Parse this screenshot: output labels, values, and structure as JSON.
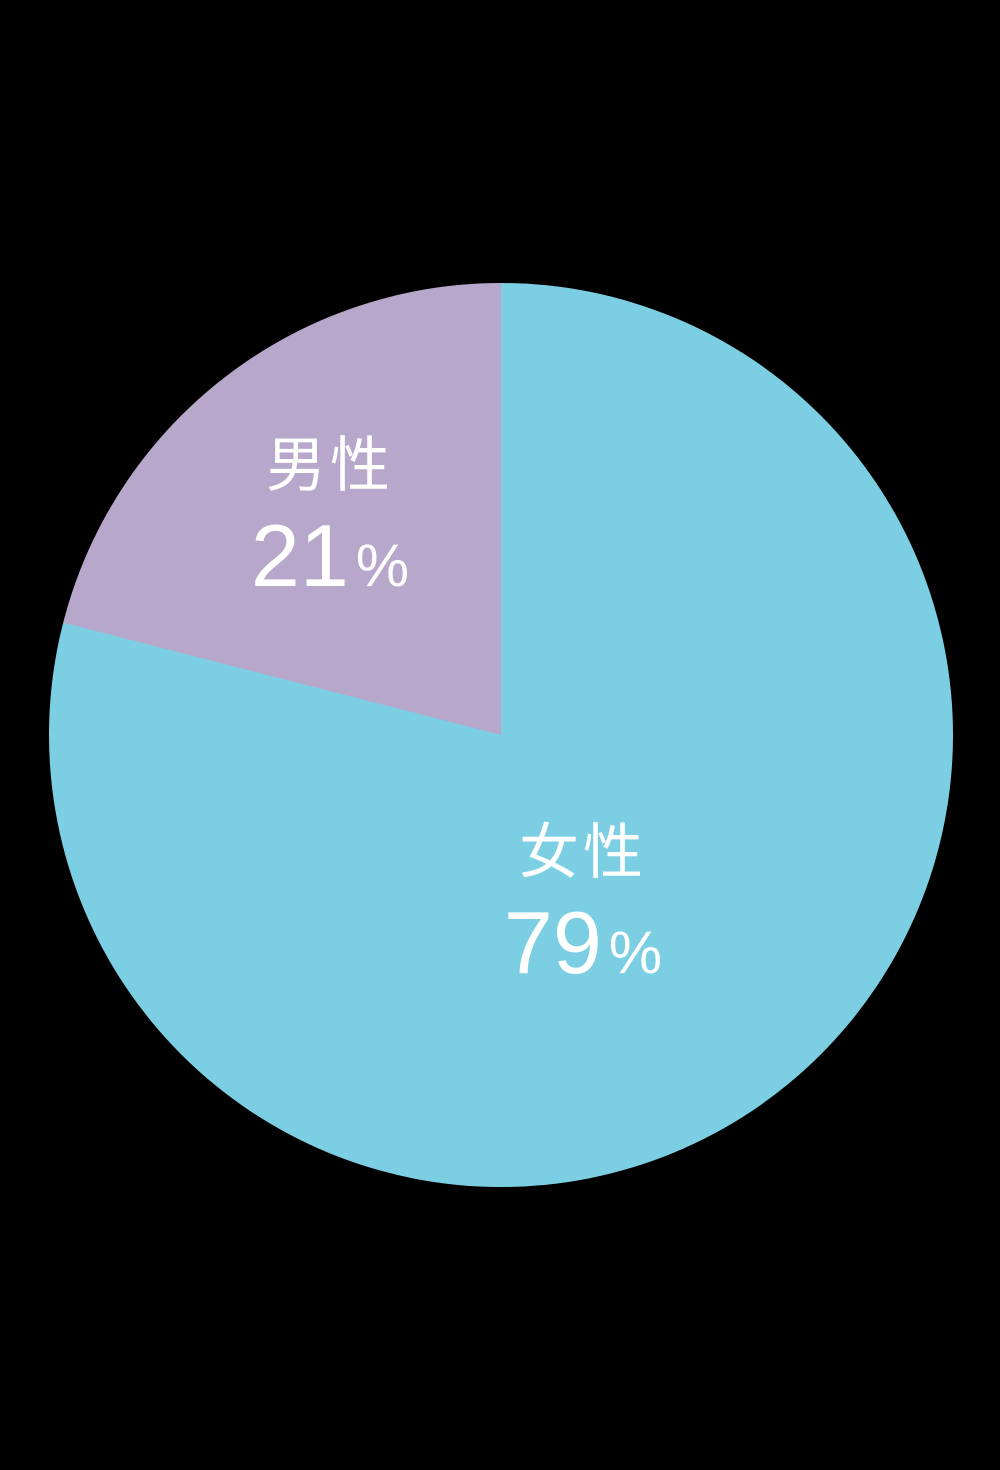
{
  "chart_data": {
    "type": "pie",
    "title": "",
    "categories": [
      "女性",
      "男性"
    ],
    "values": [
      79,
      21
    ],
    "unit": "%",
    "colors": [
      "#7ccfe3",
      "#b7a7cb"
    ],
    "label_color": "#ffffff",
    "background_color": "#000000",
    "start_angle": "12 o'clock",
    "direction": "clockwise",
    "legend": "none",
    "labels_on_slices": true,
    "slices": [
      {
        "label": "女性",
        "value_text": "79",
        "percent_sign": "%"
      },
      {
        "label": "男性",
        "value_text": "21",
        "percent_sign": "%"
      }
    ]
  }
}
